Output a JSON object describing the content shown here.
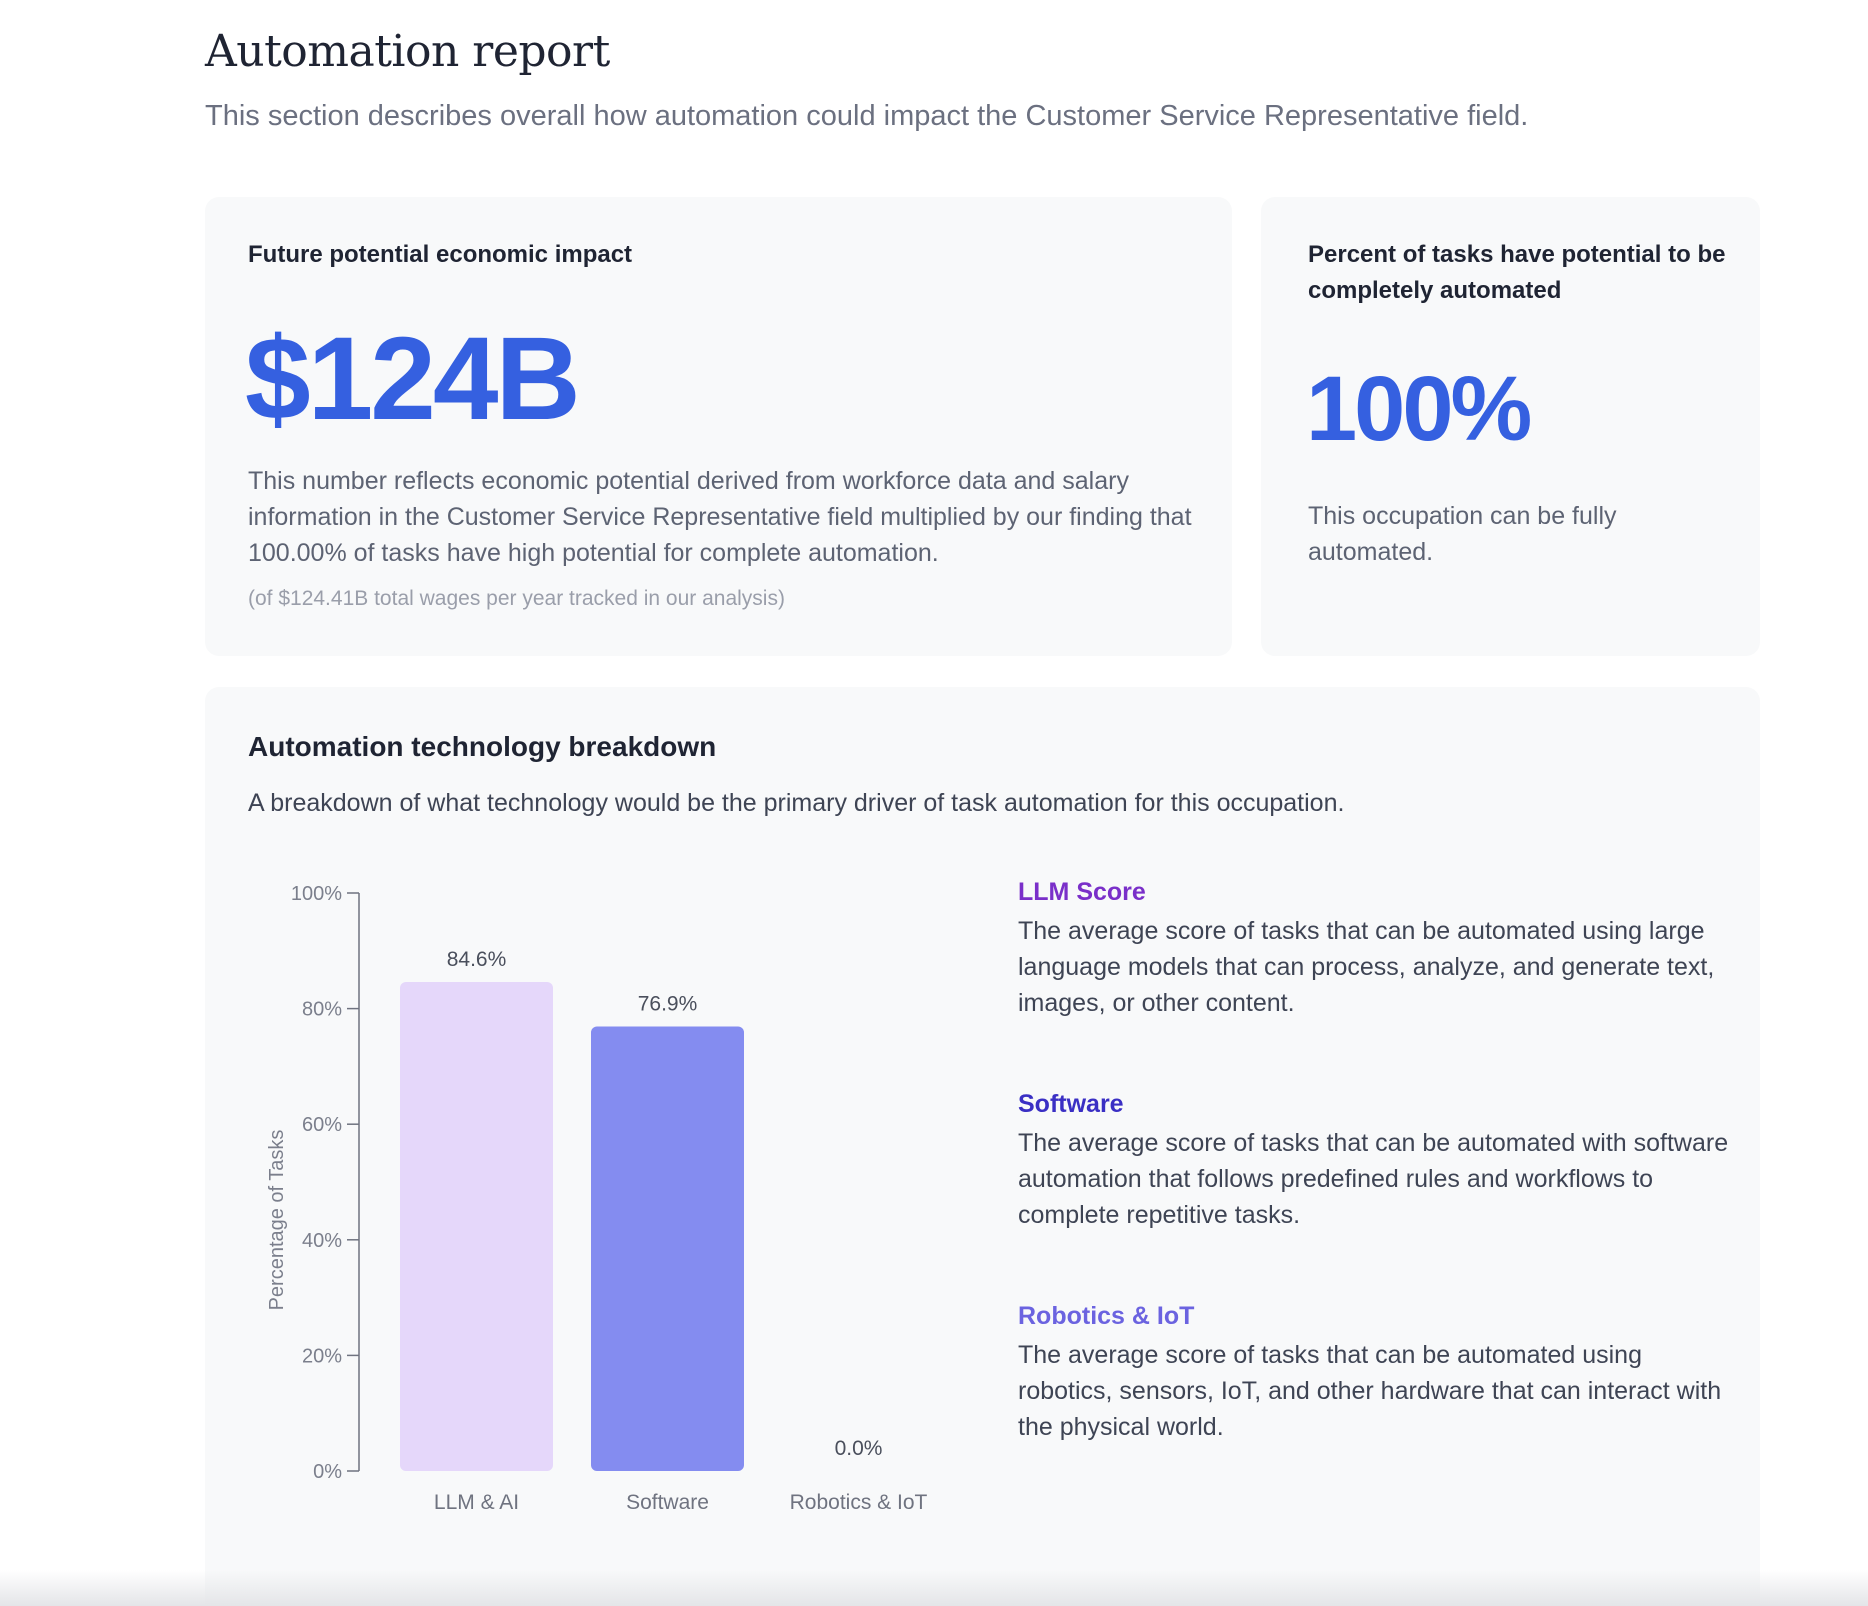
{
  "header": {
    "title": "Automation report",
    "subtitle": "This section describes overall how automation could impact the Customer Service Representative field."
  },
  "impact_card": {
    "label": "Future potential economic impact",
    "value": "$124B",
    "description": "This number reflects economic potential derived from workforce data and salary information in the Customer Service Representative field multiplied by our finding that 100.00% of tasks have high potential for complete automation.",
    "note": "(of $124.41B total wages per year tracked in our analysis)"
  },
  "percent_card": {
    "label": "Percent of tasks have potential to be completely automated",
    "value": "100%",
    "description": "This occupation can be fully automated."
  },
  "breakdown": {
    "title": "Automation technology breakdown",
    "description": "A breakdown of what technology would be the primary driver of task automation for this occupation.",
    "legend": [
      {
        "title": "LLM Score",
        "color": "#7a2fc9",
        "description": "The average score of tasks that can be automated using large language models that can process, analyze, and generate text, images, or other content."
      },
      {
        "title": "Software",
        "color": "#3a2fc4",
        "description": "The average score of tasks that can be automated with software automation that follows predefined rules and workflows to complete repetitive tasks."
      },
      {
        "title": "Robotics & IoT",
        "color": "#6b63e0",
        "description": "The average score of tasks that can be automated using robotics, sensors, IoT, and other hardware that can interact with the physical world."
      }
    ]
  },
  "colors": {
    "accent": "#3560e0",
    "card_background": "#f8f9fa"
  },
  "chart_data": {
    "type": "bar",
    "categories": [
      "LLM & AI",
      "Software",
      "Robotics & IoT"
    ],
    "values": [
      84.6,
      76.9,
      0.0
    ],
    "value_labels": [
      "84.6%",
      "76.9%",
      "0.0%"
    ],
    "bar_colors": [
      "#e5d7fa",
      "#848cf0",
      "#c9c6f5"
    ],
    "title": "",
    "xlabel": "",
    "ylabel": "Percentage of Tasks",
    "ylim": [
      0,
      100
    ],
    "yticks": [
      0,
      20,
      40,
      60,
      80,
      100
    ],
    "ytick_labels": [
      "0%",
      "20%",
      "40%",
      "60%",
      "80%",
      "100%"
    ],
    "grid": false,
    "legend": "none"
  }
}
